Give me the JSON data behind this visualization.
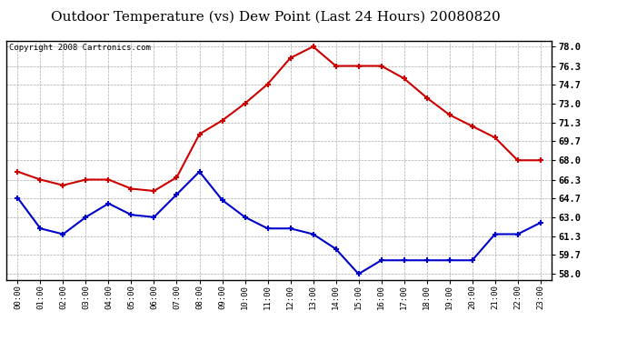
{
  "title": "Outdoor Temperature (vs) Dew Point (Last 24 Hours) 20080820",
  "copyright": "Copyright 2008 Cartronics.com",
  "x_labels": [
    "00:00",
    "01:00",
    "02:00",
    "03:00",
    "04:00",
    "05:00",
    "06:00",
    "07:00",
    "08:00",
    "09:00",
    "10:00",
    "11:00",
    "12:00",
    "13:00",
    "14:00",
    "15:00",
    "16:00",
    "17:00",
    "18:00",
    "19:00",
    "20:00",
    "21:00",
    "22:00",
    "23:00"
  ],
  "temp_values": [
    67.0,
    66.3,
    65.8,
    66.3,
    66.3,
    65.5,
    65.3,
    66.5,
    70.3,
    71.5,
    73.0,
    74.7,
    77.0,
    78.0,
    76.3,
    76.3,
    76.3,
    75.2,
    73.5,
    72.0,
    71.0,
    70.0,
    68.0,
    68.0
  ],
  "dew_values": [
    64.7,
    62.0,
    61.5,
    63.0,
    64.2,
    63.2,
    63.0,
    65.0,
    67.0,
    64.5,
    63.0,
    62.0,
    62.0,
    61.5,
    60.2,
    58.0,
    59.2,
    59.2,
    59.2,
    59.2,
    59.2,
    61.5,
    61.5,
    62.5
  ],
  "temp_color": "#cc0000",
  "dew_color": "#0000cc",
  "y_ticks": [
    58.0,
    59.7,
    61.3,
    63.0,
    64.7,
    66.3,
    68.0,
    69.7,
    71.3,
    73.0,
    74.7,
    76.3,
    78.0
  ],
  "ylim": [
    57.5,
    78.5
  ],
  "bg_color": "#ffffff",
  "plot_bg_color": "#ffffff",
  "grid_color": "#aaaaaa",
  "title_fontsize": 11,
  "copyright_fontsize": 6.5
}
